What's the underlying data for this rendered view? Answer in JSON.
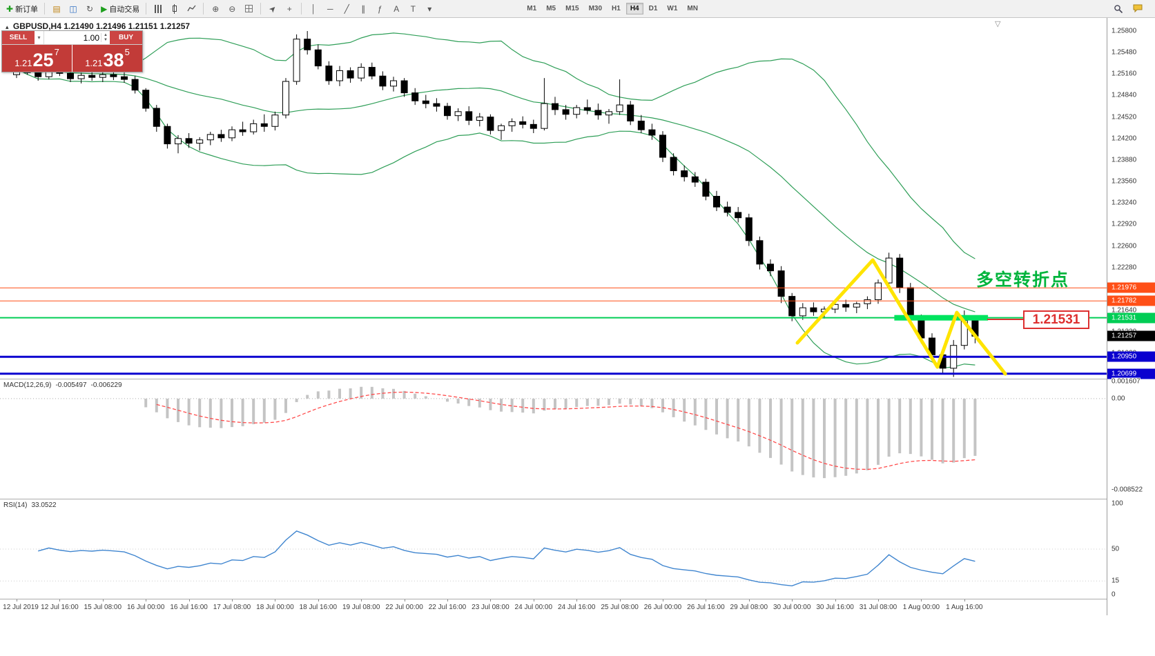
{
  "toolbar": {
    "new_order": {
      "icon": "✚",
      "label": "新订单"
    },
    "autotrade": {
      "icon": "▶",
      "label": "自动交易"
    },
    "icons": {
      "profiles": "▤",
      "market_watch": "◫",
      "refresh": "↻",
      "zoom_in": "⊕",
      "zoom_out": "⊖",
      "cursor": "➤",
      "crosshair": "+",
      "vline": "│",
      "hline": "─",
      "trendline": "╱",
      "channel": "∥",
      "fibonacci": "ƒ",
      "text": "A",
      "label": "T",
      "dropdown": "▾"
    },
    "timeframes": [
      "M1",
      "M5",
      "M15",
      "M30",
      "H1",
      "H4",
      "D1",
      "W1",
      "MN"
    ],
    "active_timeframe": "H4"
  },
  "trade_panel": {
    "sell_label": "SELL",
    "buy_label": "BUY",
    "volume": "1.00",
    "sell_price": {
      "prefix": "1.21",
      "big": "25",
      "sup": "7"
    },
    "buy_price": {
      "prefix": "1.21",
      "big": "38",
      "sup": "5"
    }
  },
  "chart": {
    "title": "GBPUSD,H4",
    "ohlc_text": "1.21490 1.21496 1.21151 1.21257",
    "annotation": "多空转折点",
    "annotation_color": "#00b43c",
    "callout": "1.21531",
    "macd_label": "MACD(12,26,9)",
    "macd_value": "-0.005497",
    "macd_signal": "-0.006229",
    "rsi_label": "RSI(14)",
    "rsi_value": "33.0522",
    "shift_marker": "▽"
  },
  "chart_data": {
    "type": "candlestick",
    "symbol": "GBPUSD",
    "period": "H4",
    "current": {
      "open": 1.2149,
      "high": 1.21496,
      "low": 1.21151,
      "close": 1.21257
    },
    "price_axis": {
      "view_max": 1.25995,
      "view_min": 1.20624,
      "tick_start": 1.258,
      "tick_step": 0.0032,
      "tick_count": 17,
      "decimals": 5
    },
    "x_labels": [
      "12 Jul 2019",
      "12 Jul 16:00",
      "15 Jul 08:00",
      "16 Jul 00:00",
      "16 Jul 16:00",
      "17 Jul 08:00",
      "18 Jul 00:00",
      "18 Jul 16:00",
      "19 Jul 08:00",
      "22 Jul 00:00",
      "22 Jul 16:00",
      "23 Jul 08:00",
      "24 Jul 00:00",
      "24 Jul 16:00",
      "25 Jul 08:00",
      "26 Jul 00:00",
      "26 Jul 16:00",
      "29 Jul 08:00",
      "30 Jul 00:00",
      "30 Jul 16:00",
      "31 Jul 08:00",
      "1 Aug 00:00",
      "1 Aug 16:00"
    ],
    "candles_per_label": 4,
    "candles": [
      [
        1.2515,
        1.2526,
        1.251,
        1.2523
      ],
      [
        1.2523,
        1.253,
        1.2515,
        1.2518
      ],
      [
        1.2518,
        1.2524,
        1.2506,
        1.2512
      ],
      [
        1.2512,
        1.2533,
        1.2508,
        1.2528
      ],
      [
        1.2528,
        1.2532,
        1.2513,
        1.2517
      ],
      [
        1.2517,
        1.2522,
        1.2504,
        1.2509
      ],
      [
        1.2509,
        1.2518,
        1.2502,
        1.2514
      ],
      [
        1.2514,
        1.252,
        1.2506,
        1.2511
      ],
      [
        1.2511,
        1.252,
        1.2504,
        1.2515
      ],
      [
        1.2515,
        1.2521,
        1.2507,
        1.2512
      ],
      [
        1.2512,
        1.2519,
        1.2503,
        1.2508
      ],
      [
        1.2508,
        1.2513,
        1.2487,
        1.2492
      ],
      [
        1.2492,
        1.2495,
        1.246,
        1.2465
      ],
      [
        1.2465,
        1.247,
        1.243,
        1.2438
      ],
      [
        1.2438,
        1.2442,
        1.2405,
        1.2412
      ],
      [
        1.2412,
        1.2425,
        1.2398,
        1.242
      ],
      [
        1.242,
        1.2428,
        1.2406,
        1.2413
      ],
      [
        1.2413,
        1.2422,
        1.2402,
        1.2418
      ],
      [
        1.2418,
        1.243,
        1.241,
        1.2426
      ],
      [
        1.2426,
        1.2433,
        1.2415,
        1.2421
      ],
      [
        1.2421,
        1.2438,
        1.2416,
        1.2433
      ],
      [
        1.2433,
        1.2445,
        1.2424,
        1.243
      ],
      [
        1.243,
        1.2448,
        1.2426,
        1.2442
      ],
      [
        1.2442,
        1.2456,
        1.243,
        1.2438
      ],
      [
        1.2438,
        1.246,
        1.2432,
        1.2455
      ],
      [
        1.2455,
        1.251,
        1.245,
        1.2505
      ],
      [
        1.2505,
        1.2575,
        1.25,
        1.2568
      ],
      [
        1.2568,
        1.258,
        1.2545,
        1.2552
      ],
      [
        1.2552,
        1.256,
        1.2523,
        1.2528
      ],
      [
        1.2528,
        1.2535,
        1.25,
        1.2506
      ],
      [
        1.2506,
        1.2528,
        1.2498,
        1.2521
      ],
      [
        1.2521,
        1.2526,
        1.2503,
        1.251
      ],
      [
        1.251,
        1.2532,
        1.2505,
        1.2526
      ],
      [
        1.2526,
        1.2533,
        1.2508,
        1.2513
      ],
      [
        1.2513,
        1.252,
        1.2492,
        1.2498
      ],
      [
        1.2498,
        1.2512,
        1.249,
        1.2506
      ],
      [
        1.2506,
        1.251,
        1.2482,
        1.2488
      ],
      [
        1.2488,
        1.2495,
        1.247,
        1.2476
      ],
      [
        1.2476,
        1.2485,
        1.2465,
        1.2472
      ],
      [
        1.2472,
        1.248,
        1.246,
        1.2468
      ],
      [
        1.2468,
        1.2473,
        1.2448,
        1.2454
      ],
      [
        1.2454,
        1.2465,
        1.2446,
        1.246
      ],
      [
        1.246,
        1.2468,
        1.244,
        1.2447
      ],
      [
        1.2447,
        1.2458,
        1.2438,
        1.2452
      ],
      [
        1.2452,
        1.2456,
        1.2426,
        1.2432
      ],
      [
        1.2432,
        1.2442,
        1.2418,
        1.2439
      ],
      [
        1.2439,
        1.245,
        1.243,
        1.2445
      ],
      [
        1.2445,
        1.2453,
        1.2435,
        1.2441
      ],
      [
        1.2441,
        1.2448,
        1.2428,
        1.2435
      ],
      [
        1.2435,
        1.251,
        1.2432,
        1.2472
      ],
      [
        1.2472,
        1.2482,
        1.2455,
        1.2463
      ],
      [
        1.2463,
        1.247,
        1.2448,
        1.2456
      ],
      [
        1.2456,
        1.247,
        1.245,
        1.2466
      ],
      [
        1.2466,
        1.2478,
        1.2456,
        1.2462
      ],
      [
        1.2462,
        1.2472,
        1.2448,
        1.2455
      ],
      [
        1.2455,
        1.2464,
        1.2442,
        1.246
      ],
      [
        1.246,
        1.2508,
        1.2455,
        1.247
      ],
      [
        1.247,
        1.2476,
        1.244,
        1.2446
      ],
      [
        1.2446,
        1.2455,
        1.2428,
        1.2433
      ],
      [
        1.2433,
        1.2442,
        1.2418,
        1.2425
      ],
      [
        1.2425,
        1.2431,
        1.2385,
        1.2392
      ],
      [
        1.2392,
        1.2398,
        1.2365,
        1.2372
      ],
      [
        1.2372,
        1.238,
        1.2356,
        1.2363
      ],
      [
        1.2363,
        1.237,
        1.2348,
        1.2355
      ],
      [
        1.2355,
        1.236,
        1.2328,
        1.2334
      ],
      [
        1.2334,
        1.2342,
        1.2312,
        1.2318
      ],
      [
        1.2318,
        1.2326,
        1.2304,
        1.231
      ],
      [
        1.231,
        1.2318,
        1.2295,
        1.2302
      ],
      [
        1.2302,
        1.2308,
        1.226,
        1.2268
      ],
      [
        1.2268,
        1.2274,
        1.2225,
        1.2233
      ],
      [
        1.2233,
        1.224,
        1.2215,
        1.2223
      ],
      [
        1.2223,
        1.223,
        1.2175,
        1.2185
      ],
      [
        1.2185,
        1.219,
        1.2148,
        1.2156
      ],
      [
        1.2156,
        1.2175,
        1.215,
        1.2168
      ],
      [
        1.2168,
        1.2176,
        1.2156,
        1.2162
      ],
      [
        1.2162,
        1.217,
        1.2152,
        1.2166
      ],
      [
        1.2166,
        1.2178,
        1.216,
        1.2173
      ],
      [
        1.2173,
        1.218,
        1.2162,
        1.2169
      ],
      [
        1.2169,
        1.2177,
        1.216,
        1.2174
      ],
      [
        1.2174,
        1.2185,
        1.2166,
        1.218
      ],
      [
        1.218,
        1.221,
        1.2174,
        1.2205
      ],
      [
        1.2205,
        1.225,
        1.22,
        1.2242
      ],
      [
        1.2242,
        1.2248,
        1.219,
        1.2198
      ],
      [
        1.2198,
        1.2205,
        1.2145,
        1.2152
      ],
      [
        1.2152,
        1.2158,
        1.2115,
        1.2123
      ],
      [
        1.2123,
        1.213,
        1.209,
        1.2098
      ],
      [
        1.2098,
        1.2105,
        1.207,
        1.2078
      ],
      [
        1.2078,
        1.212,
        1.2065,
        1.2112
      ],
      [
        1.2112,
        1.2164,
        1.2106,
        1.2149
      ],
      [
        1.2149,
        1.21496,
        1.21151,
        1.21257
      ]
    ],
    "indicators": {
      "bollinger": {
        "period": 20,
        "deviation": 2,
        "color": "#2e9e57"
      },
      "macd": {
        "fast": 12,
        "slow": 26,
        "signal": 9,
        "hist_color": "#c4c4c4",
        "signal_color": "#ff4a4a",
        "axis_labels": [
          "0.001607",
          "0.00",
          "-0.008522"
        ],
        "axis_values": [
          0.001607,
          0,
          -0.008522
        ],
        "view_max": 0.001865,
        "view_min": -0.00936
      },
      "rsi": {
        "period": 14,
        "color": "#3f85cf",
        "axis_labels": [
          "100",
          "50",
          "15",
          "0"
        ],
        "axis_values": [
          100,
          50,
          15,
          0
        ],
        "levels": [
          50,
          15
        ],
        "view_max": 105.3,
        "view_min": -4.5
      }
    },
    "h_lines": [
      {
        "price": 1.21976,
        "tag": "1.21976",
        "color": "#ff4f17",
        "width": 1
      },
      {
        "price": 1.21782,
        "tag": "1.21782",
        "color": "#ff4f17",
        "width": 1
      },
      {
        "price": 1.21531,
        "tag": "1.21531",
        "color": "#00cd55",
        "width": 2
      },
      {
        "price": 1.2095,
        "tag": "1.20950",
        "color": "#0a00cf",
        "width": 3
      },
      {
        "price": 1.20699,
        "tag": "1.20699",
        "color": "#0a00cf",
        "width": 3
      }
    ],
    "price_tag": {
      "price": 1.21257,
      "tag": "1.21257",
      "color": "#000000"
    },
    "green_zone": {
      "price": 1.21531,
      "from_index": 81.5,
      "to_index": 90.2,
      "color": "#00e45e",
      "height": 8
    },
    "yellow_path": {
      "color": "#ffe400",
      "width": 5,
      "points": [
        [
          72.5,
          1.21158
        ],
        [
          79.5,
          1.2239
        ],
        [
          85.5,
          1.20798
        ],
        [
          87.3,
          1.2161
        ],
        [
          91.8,
          1.20696
        ]
      ]
    }
  }
}
